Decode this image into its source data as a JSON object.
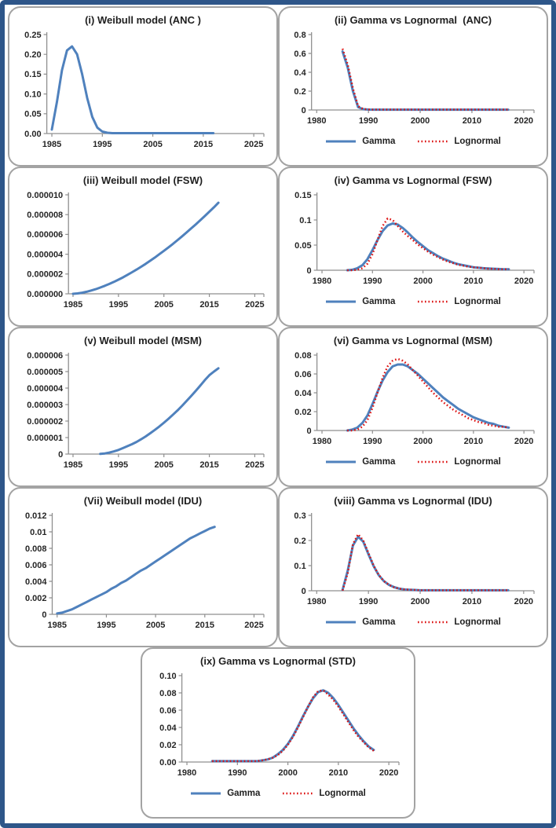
{
  "page": {
    "border_color": "#2E5689",
    "panel_border_color": "#A3A3A3",
    "background": "#FFFFFF"
  },
  "styles": {
    "axis_color": "#8F8F8F",
    "tick_label_color": "#262626",
    "gamma_blue": "#4F81BD",
    "lognormal_red": "#DD1111"
  },
  "legend_labels": [
    "Gamma",
    "Lognormal"
  ],
  "chart_data": [
    {
      "id": "i",
      "type": "line",
      "title": "(i) Weibull model (ANC )",
      "legend": false,
      "xlim": [
        1984,
        2027
      ],
      "x_ticks": [
        1985,
        1995,
        2005,
        2015,
        2025
      ],
      "x_tick_labels": [
        "1985",
        "1995",
        "2005",
        "2015",
        "2025"
      ],
      "ylim": [
        0,
        0.25
      ],
      "y_ticks": [
        0,
        0.05,
        0.1,
        0.15,
        0.2,
        0.25
      ],
      "y_tick_labels": [
        "0.00",
        "0.05",
        "0.10",
        "0.15",
        "0.20",
        "0.25"
      ],
      "series": [
        {
          "name": "Weibull",
          "color": "#4F81BD",
          "style": "solid",
          "x_start": 1985,
          "values": [
            0.01,
            0.08,
            0.16,
            0.21,
            0.22,
            0.2,
            0.15,
            0.09,
            0.042,
            0.015,
            0.005,
            0.002,
            0.001,
            0.001,
            0.001,
            0.001,
            0.001,
            0.001,
            0.001,
            0.001,
            0.001,
            0.001,
            0.001,
            0.001,
            0.001,
            0.001,
            0.001,
            0.001,
            0.001,
            0.001,
            0.001,
            0.001,
            0.001
          ]
        }
      ]
    },
    {
      "id": "ii",
      "type": "line",
      "title": "(ii) Gamma vs Lognormal  (ANC)",
      "legend": true,
      "xlim": [
        1979,
        2022
      ],
      "x_ticks": [
        1980,
        1990,
        2000,
        2010,
        2020
      ],
      "x_tick_labels": [
        "1980",
        "1990",
        "2000",
        "2010",
        "2020"
      ],
      "ylim": [
        0,
        0.8
      ],
      "y_ticks": [
        0,
        0.2,
        0.4,
        0.6,
        0.8
      ],
      "y_tick_labels": [
        "0",
        "0.2",
        "0.4",
        "0.6",
        "0.8"
      ],
      "series": [
        {
          "name": "Gamma",
          "color": "#4F81BD",
          "style": "solid",
          "x_start": 1985,
          "values": [
            0.62,
            0.45,
            0.2,
            0.03,
            0.008,
            0.004,
            0.003,
            0.003,
            0.003,
            0.003,
            0.003,
            0.003,
            0.003,
            0.003,
            0.003,
            0.003,
            0.003,
            0.003,
            0.003,
            0.003,
            0.003,
            0.003,
            0.003,
            0.003,
            0.003,
            0.003,
            0.003,
            0.003,
            0.003,
            0.003,
            0.003,
            0.003,
            0.003
          ]
        },
        {
          "name": "Lognormal",
          "color": "#DD1111",
          "style": "dotted",
          "x_start": 1985,
          "values": [
            0.65,
            0.48,
            0.23,
            0.04,
            0.01,
            0.005,
            0.004,
            0.004,
            0.004,
            0.004,
            0.004,
            0.004,
            0.004,
            0.004,
            0.004,
            0.004,
            0.004,
            0.004,
            0.004,
            0.004,
            0.004,
            0.004,
            0.004,
            0.004,
            0.004,
            0.004,
            0.004,
            0.004,
            0.004,
            0.004,
            0.004,
            0.004,
            0.004
          ]
        }
      ]
    },
    {
      "id": "iii",
      "type": "line",
      "title": "(iii) Weibull model (FSW)",
      "legend": false,
      "xlim": [
        1984,
        2027
      ],
      "x_ticks": [
        1985,
        1995,
        2005,
        2015,
        2025
      ],
      "x_tick_labels": [
        "1985",
        "1995",
        "2005",
        "2015",
        "2025"
      ],
      "ylim": [
        0,
        1e-05
      ],
      "y_ticks": [
        0,
        2e-06,
        4e-06,
        6e-06,
        8e-06,
        1e-05
      ],
      "y_tick_labels": [
        "0.000000",
        "0.000002",
        "0.000004",
        "0.000006",
        "0.000008",
        "0.000010"
      ],
      "series": [
        {
          "name": "Weibull",
          "color": "#4F81BD",
          "style": "solid",
          "x_start": 1985,
          "values": [
            0,
            3.6e-08,
            1.09e-07,
            2.09e-07,
            3.3e-07,
            4.72e-07,
            6.32e-07,
            8.1e-07,
            1e-06,
            1.21e-06,
            1.43e-06,
            1.66e-06,
            1.92e-06,
            2.18e-06,
            2.45e-06,
            2.74e-06,
            3.03e-06,
            3.34e-06,
            3.66e-06,
            4e-06,
            4.34e-06,
            4.69e-06,
            5.05e-06,
            5.43e-06,
            5.81e-06,
            6.2e-06,
            6.6e-06,
            7.01e-06,
            7.43e-06,
            7.86e-06,
            8.3e-06,
            8.74e-06,
            9.2e-06
          ]
        }
      ]
    },
    {
      "id": "iv",
      "type": "line",
      "title": "(iv) Gamma vs Lognormal (FSW)",
      "legend": true,
      "xlim": [
        1979,
        2022
      ],
      "x_ticks": [
        1980,
        1990,
        2000,
        2010,
        2020
      ],
      "x_tick_labels": [
        "1980",
        "1990",
        "2000",
        "2010",
        "2020"
      ],
      "ylim": [
        0,
        0.15
      ],
      "y_ticks": [
        0,
        0.05,
        0.1,
        0.15
      ],
      "y_tick_labels": [
        "0",
        "0.05",
        "0.1",
        "0.15"
      ],
      "series": [
        {
          "name": "Gamma",
          "color": "#4F81BD",
          "style": "solid",
          "x_start": 1985,
          "values": [
            0,
            0.001,
            0.004,
            0.01,
            0.022,
            0.04,
            0.06,
            0.078,
            0.089,
            0.093,
            0.091,
            0.084,
            0.075,
            0.065,
            0.056,
            0.048,
            0.04,
            0.034,
            0.028,
            0.023,
            0.019,
            0.015,
            0.012,
            0.01,
            0.008,
            0.006,
            0.005,
            0.004,
            0.0035,
            0.003,
            0.0025,
            0.002,
            0.002
          ]
        },
        {
          "name": "Lognormal",
          "color": "#DD1111",
          "style": "dotted",
          "x_start": 1985,
          "values": [
            0,
            0,
            0.001,
            0.004,
            0.013,
            0.032,
            0.06,
            0.088,
            0.103,
            0.1,
            0.088,
            0.077,
            0.068,
            0.06,
            0.051,
            0.044,
            0.037,
            0.031,
            0.026,
            0.021,
            0.017,
            0.014,
            0.011,
            0.009,
            0.007,
            0.006,
            0.005,
            0.004,
            0.003,
            0.003,
            0.002,
            0.002,
            0.002
          ]
        }
      ]
    },
    {
      "id": "v",
      "type": "line",
      "title": "(v) Weibull model (MSM)",
      "legend": false,
      "xlim": [
        1984,
        2027
      ],
      "x_ticks": [
        1985,
        1995,
        2005,
        2015,
        2025
      ],
      "x_tick_labels": [
        "1985",
        "1995",
        "2005",
        "2015",
        "2025"
      ],
      "ylim": [
        0,
        6e-06
      ],
      "y_ticks": [
        0,
        1e-06,
        2e-06,
        3e-06,
        4e-06,
        5e-06,
        6e-06
      ],
      "y_tick_labels": [
        "0",
        "0.000001",
        "0.000002",
        "0.000003",
        "0.000004",
        "0.000005",
        "0.000006"
      ],
      "series": [
        {
          "name": "Weibull",
          "color": "#4F81BD",
          "style": "solid",
          "x_start": 1991,
          "values": [
            1e-08,
            4e-08,
            9e-08,
            1.6e-07,
            2.5e-07,
            3.6e-07,
            4.8e-07,
            6e-07,
            7.4e-07,
            9e-07,
            1.07e-06,
            1.26e-06,
            1.46e-06,
            1.67e-06,
            1.9e-06,
            2.14e-06,
            2.39e-06,
            2.65e-06,
            2.93e-06,
            3.22e-06,
            3.52e-06,
            3.83e-06,
            4.15e-06,
            4.48e-06,
            4.78e-06,
            5e-06,
            5.2e-06
          ]
        }
      ]
    },
    {
      "id": "vi",
      "type": "line",
      "title": "(vi) Gamma vs Lognormal (MSM)",
      "legend": true,
      "xlim": [
        1979,
        2022
      ],
      "x_ticks": [
        1980,
        1990,
        2000,
        2010,
        2020
      ],
      "x_tick_labels": [
        "1980",
        "1990",
        "2000",
        "2010",
        "2020"
      ],
      "ylim": [
        0,
        0.08
      ],
      "y_ticks": [
        0,
        0.02,
        0.04,
        0.06,
        0.08
      ],
      "y_tick_labels": [
        "0",
        "0.02",
        "0.04",
        "0.06",
        "0.08"
      ],
      "series": [
        {
          "name": "Gamma",
          "color": "#4F81BD",
          "style": "solid",
          "x_start": 1985,
          "values": [
            0,
            0.001,
            0.003,
            0.008,
            0.016,
            0.028,
            0.041,
            0.053,
            0.062,
            0.068,
            0.07,
            0.07,
            0.068,
            0.064,
            0.06,
            0.055,
            0.05,
            0.045,
            0.04,
            0.035,
            0.031,
            0.027,
            0.023,
            0.02,
            0.017,
            0.014,
            0.012,
            0.01,
            0.008,
            0.007,
            0.005,
            0.004,
            0.003
          ]
        },
        {
          "name": "Lognormal",
          "color": "#DD1111",
          "style": "dotted",
          "x_start": 1985,
          "values": [
            0,
            0,
            0.001,
            0.004,
            0.011,
            0.024,
            0.04,
            0.056,
            0.068,
            0.074,
            0.076,
            0.074,
            0.07,
            0.064,
            0.058,
            0.052,
            0.046,
            0.04,
            0.035,
            0.03,
            0.026,
            0.022,
            0.019,
            0.016,
            0.013,
            0.011,
            0.009,
            0.008,
            0.006,
            0.005,
            0.004,
            0.004,
            0.003
          ]
        }
      ]
    },
    {
      "id": "vii",
      "type": "line",
      "title": "(Vii) Weibull model (IDU)",
      "legend": false,
      "xlim": [
        1984,
        2027
      ],
      "x_ticks": [
        1985,
        1995,
        2005,
        2015,
        2025
      ],
      "x_tick_labels": [
        "1985",
        "1995",
        "2005",
        "2015",
        "2025"
      ],
      "ylim": [
        0,
        0.012
      ],
      "y_ticks": [
        0,
        0.002,
        0.004,
        0.006,
        0.008,
        0.01,
        0.012
      ],
      "y_tick_labels": [
        "0",
        "0.002",
        "0.004",
        "0.006",
        "0.008",
        "0.01",
        "0.012"
      ],
      "series": [
        {
          "name": "Weibull",
          "color": "#4F81BD",
          "style": "solid",
          "x_start": 1985,
          "values": [
            0.0001,
            0.0002,
            0.0004,
            0.0006,
            0.0009,
            0.0012,
            0.0015,
            0.0018,
            0.0021,
            0.0024,
            0.0027,
            0.0031,
            0.0034,
            0.0038,
            0.0041,
            0.0045,
            0.0049,
            0.0053,
            0.0056,
            0.006,
            0.0064,
            0.0068,
            0.0072,
            0.0076,
            0.008,
            0.0084,
            0.0088,
            0.0092,
            0.0095,
            0.0098,
            0.0101,
            0.0104,
            0.0106
          ]
        }
      ]
    },
    {
      "id": "viii",
      "type": "line",
      "title": "(viii) Gamma vs Lognormal (IDU)",
      "legend": true,
      "xlim": [
        1979,
        2022
      ],
      "x_ticks": [
        1980,
        1990,
        2000,
        2010,
        2020
      ],
      "x_tick_labels": [
        "1980",
        "1990",
        "2000",
        "2010",
        "2020"
      ],
      "ylim": [
        0,
        0.3
      ],
      "y_ticks": [
        0,
        0.1,
        0.2,
        0.3
      ],
      "y_tick_labels": [
        "0",
        "0.1",
        "0.2",
        "0.3"
      ],
      "series": [
        {
          "name": "Gamma",
          "color": "#4F81BD",
          "style": "solid",
          "x_start": 1985,
          "values": [
            0.003,
            0.08,
            0.18,
            0.215,
            0.195,
            0.145,
            0.098,
            0.062,
            0.038,
            0.023,
            0.014,
            0.008,
            0.005,
            0.004,
            0.003,
            0.002,
            0.002,
            0.002,
            0.002,
            0.002,
            0.002,
            0.002,
            0.002,
            0.002,
            0.002,
            0.002,
            0.002,
            0.002,
            0.002,
            0.002,
            0.002,
            0.002,
            0.002
          ]
        },
        {
          "name": "Lognormal",
          "color": "#DD1111",
          "style": "dotted",
          "x_start": 1985,
          "values": [
            0.001,
            0.07,
            0.185,
            0.225,
            0.2,
            0.15,
            0.1,
            0.063,
            0.038,
            0.023,
            0.013,
            0.008,
            0.005,
            0.004,
            0.003,
            0.002,
            0.002,
            0.002,
            0.002,
            0.002,
            0.002,
            0.002,
            0.002,
            0.002,
            0.002,
            0.002,
            0.002,
            0.002,
            0.002,
            0.002,
            0.002,
            0.002,
            0.002
          ]
        }
      ]
    },
    {
      "id": "ix",
      "type": "line",
      "title": "(ix) Gamma vs Lognormal (STD)",
      "legend": true,
      "bottom": true,
      "xlim": [
        1979,
        2022
      ],
      "x_ticks": [
        1980,
        1990,
        2000,
        2010,
        2020
      ],
      "x_tick_labels": [
        "1980",
        "1990",
        "2000",
        "2010",
        "2020"
      ],
      "ylim": [
        0,
        0.1
      ],
      "y_ticks": [
        0,
        0.02,
        0.04,
        0.06,
        0.08,
        0.1
      ],
      "y_tick_labels": [
        "0.00",
        "0.02",
        "0.04",
        "0.06",
        "0.08",
        "0.10"
      ],
      "series": [
        {
          "name": "Gamma",
          "color": "#4F81BD",
          "style": "solid",
          "x_start": 1985,
          "values": [
            0.001,
            0.001,
            0.001,
            0.001,
            0.001,
            0.001,
            0.001,
            0.001,
            0.001,
            0.001,
            0.002,
            0.003,
            0.005,
            0.009,
            0.014,
            0.021,
            0.03,
            0.041,
            0.053,
            0.064,
            0.074,
            0.081,
            0.083,
            0.08,
            0.074,
            0.066,
            0.057,
            0.048,
            0.039,
            0.031,
            0.024,
            0.018,
            0.014
          ]
        },
        {
          "name": "Lognormal",
          "color": "#DD1111",
          "style": "dotted",
          "x_start": 1985,
          "values": [
            0.001,
            0.001,
            0.001,
            0.001,
            0.001,
            0.001,
            0.001,
            0.001,
            0.001,
            0.001,
            0.002,
            0.003,
            0.005,
            0.008,
            0.013,
            0.02,
            0.029,
            0.04,
            0.052,
            0.064,
            0.075,
            0.082,
            0.083,
            0.078,
            0.072,
            0.064,
            0.055,
            0.046,
            0.037,
            0.029,
            0.023,
            0.017,
            0.013
          ]
        }
      ]
    }
  ]
}
